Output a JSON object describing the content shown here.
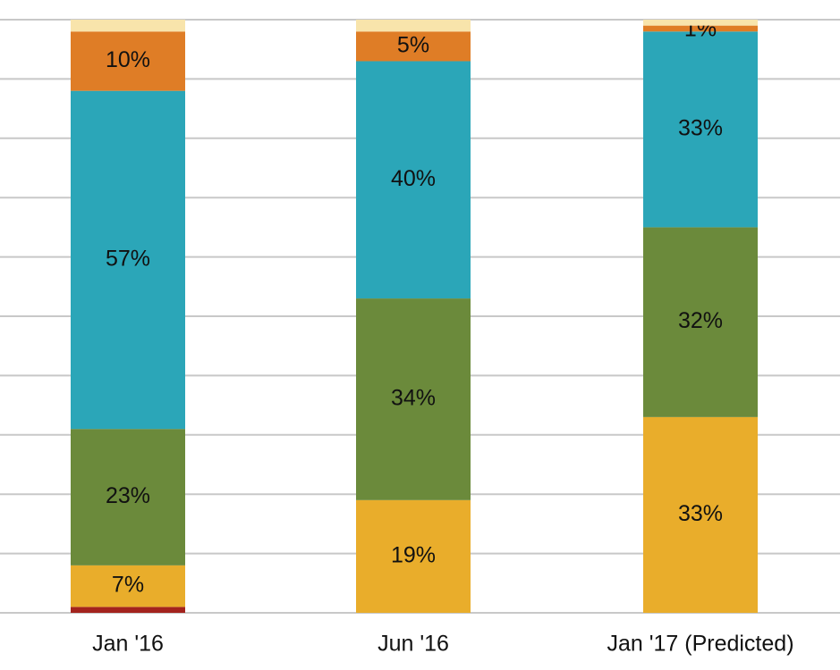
{
  "chart_data": {
    "type": "stacked_bar",
    "categories": [
      "Jan '16",
      "Jun '16",
      "Jan '17 (Predicted)"
    ],
    "series": [
      {
        "color": "#a3231d",
        "values": [
          1,
          0,
          0
        ],
        "value_labels": [
          null,
          null,
          null
        ]
      },
      {
        "color": "#e9ad2b",
        "values": [
          7,
          19,
          33
        ],
        "value_labels": [
          "7%",
          "19%",
          "33%"
        ]
      },
      {
        "color": "#6b8a3b",
        "values": [
          23,
          34,
          32
        ],
        "value_labels": [
          "23%",
          "34%",
          "32%"
        ]
      },
      {
        "color": "#2ba6b8",
        "values": [
          57,
          40,
          33
        ],
        "value_labels": [
          "57%",
          "40%",
          "33%"
        ]
      },
      {
        "color": "#df7d26",
        "values": [
          10,
          5,
          1
        ],
        "value_labels": [
          "10%",
          "5%",
          "1%"
        ]
      },
      {
        "color": "#f8e4ab",
        "values": [
          2,
          2,
          1
        ],
        "value_labels": [
          null,
          null,
          null
        ]
      }
    ],
    "ylim": [
      0,
      100
    ],
    "yticks": [
      0,
      10,
      20,
      30,
      40,
      50,
      60,
      70,
      80,
      90,
      100
    ],
    "grid": true
  }
}
